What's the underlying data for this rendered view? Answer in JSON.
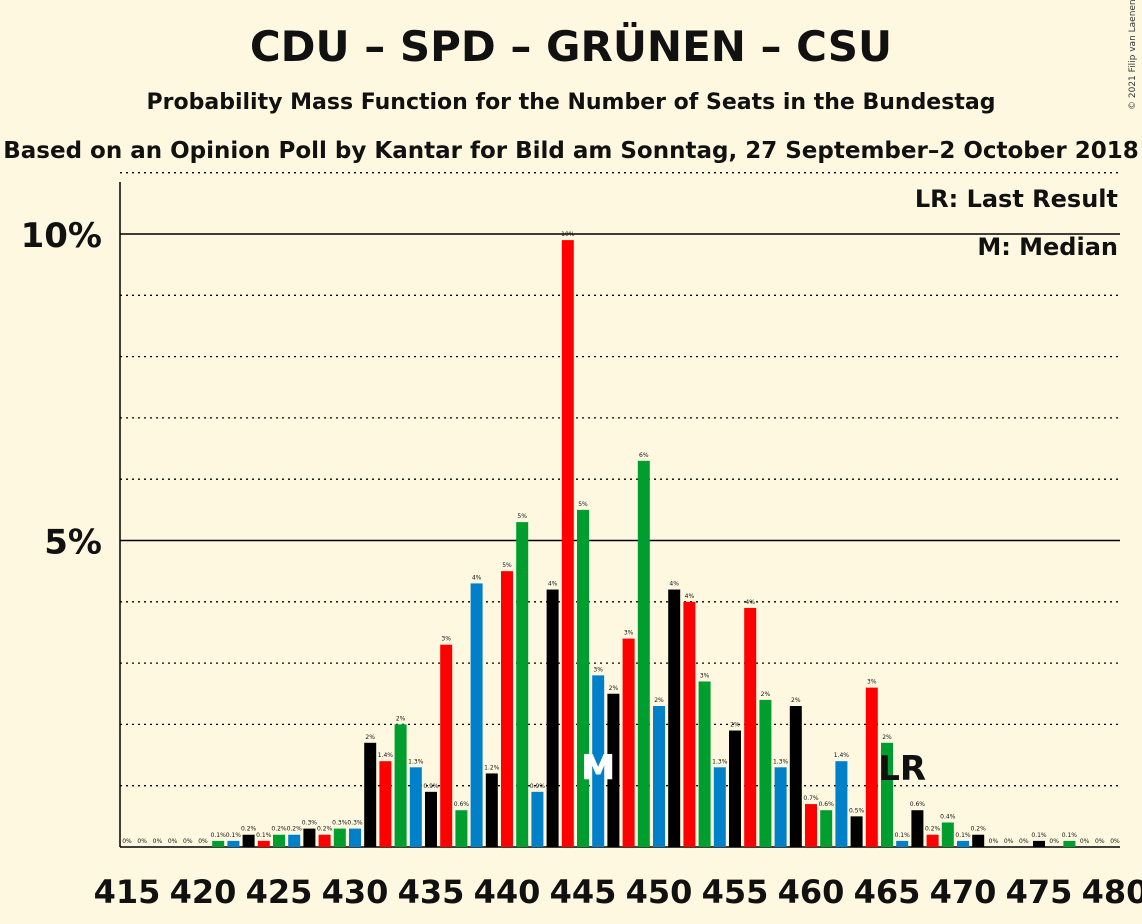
{
  "title": "CDU – SPD – GRÜNEN – CSU",
  "subtitle": "Probability Mass Function for the Number of Seats in the Bundestag",
  "source": "Based on an Opinion Poll by Kantar for Bild am Sonntag, 27 September–2 October 2018",
  "copyright": "© 2021 Filip van Laenen",
  "legend": {
    "last_result": "LR: Last Result",
    "median": "M: Median"
  },
  "markers": {
    "median_label": "M",
    "last_result_label": "LR"
  },
  "colors": {
    "background": "#FFF8E1",
    "cdu": "#000000",
    "spd": "#FF0000",
    "gruenen": "#009E2F",
    "csu": "#0080C8"
  },
  "chart_data": {
    "type": "bar",
    "x": [
      415,
      416,
      417,
      418,
      419,
      420,
      421,
      422,
      423,
      424,
      425,
      426,
      427,
      428,
      429,
      430,
      431,
      432,
      433,
      434,
      435,
      436,
      437,
      438,
      439,
      440,
      441,
      442,
      443,
      444,
      445,
      446,
      447,
      448,
      449,
      450,
      451,
      452,
      453,
      454,
      455,
      456,
      457,
      458,
      459,
      460,
      461,
      462,
      463,
      464,
      465,
      466,
      467,
      468,
      469,
      470,
      471,
      472,
      473,
      474,
      475,
      476,
      477,
      478,
      479,
      480
    ],
    "values": [
      0,
      0,
      0,
      0,
      0,
      0,
      0.1,
      0.1,
      0.2,
      0.1,
      0.2,
      0.2,
      0.3,
      0.2,
      0.3,
      0.3,
      1.7,
      1.4,
      2.0,
      1.3,
      0.9,
      3.3,
      0.6,
      4.3,
      1.2,
      4.5,
      5.3,
      0.9,
      4.2,
      9.9,
      5.5,
      2.8,
      2.5,
      3.4,
      6.3,
      2.3,
      4.2,
      4.0,
      2.7,
      1.3,
      1.9,
      3.9,
      2.4,
      1.3,
      2.3,
      0.7,
      0.6,
      1.4,
      0.5,
      2.6,
      1.7,
      0.1,
      0.6,
      0.2,
      0.4,
      0.1,
      0.2,
      0,
      0,
      0,
      0.1,
      0,
      0.1,
      0,
      0,
      0
    ],
    "value_labels": [
      "0%",
      "0%",
      "0%",
      "0%",
      "0%",
      "0%",
      "0.1%",
      "0.1%",
      "0.2%",
      "0.1%",
      "0.2%",
      "0.2%",
      "0.3%",
      "0.2%",
      "0.3%",
      "0.3%",
      "2%",
      "1.4%",
      "2%",
      "1.3%",
      "0.9%",
      "3%",
      "0.6%",
      "4%",
      "1.2%",
      "5%",
      "5%",
      "0.9%",
      "4%",
      "10%",
      "5%",
      "3%",
      "2%",
      "3%",
      "6%",
      "2%",
      "4%",
      "4%",
      "3%",
      "1.3%",
      "2%",
      "4%",
      "2%",
      "1.3%",
      "2%",
      "0.7%",
      "0.6%",
      "1.4%",
      "0.5%",
      "3%",
      "2%",
      "0.1%",
      "0.6%",
      "0.2%",
      "0.4%",
      "0.1%",
      "0.2%",
      "0%",
      "0%",
      "0%",
      "0.1%",
      "0%",
      "0.1%",
      "0%",
      "0%",
      "0%"
    ],
    "x_ticks": [
      415,
      420,
      425,
      430,
      435,
      440,
      445,
      450,
      455,
      460,
      465,
      470,
      475,
      480
    ],
    "y_ticks": [
      {
        "value": 5,
        "label": "5%"
      },
      {
        "value": 10,
        "label": "10%"
      }
    ],
    "ylim": [
      0,
      11
    ],
    "grid": "dotted at every 1%, solid at 5% and 10%",
    "median_seat": 446,
    "last_result_seat": 466
  }
}
